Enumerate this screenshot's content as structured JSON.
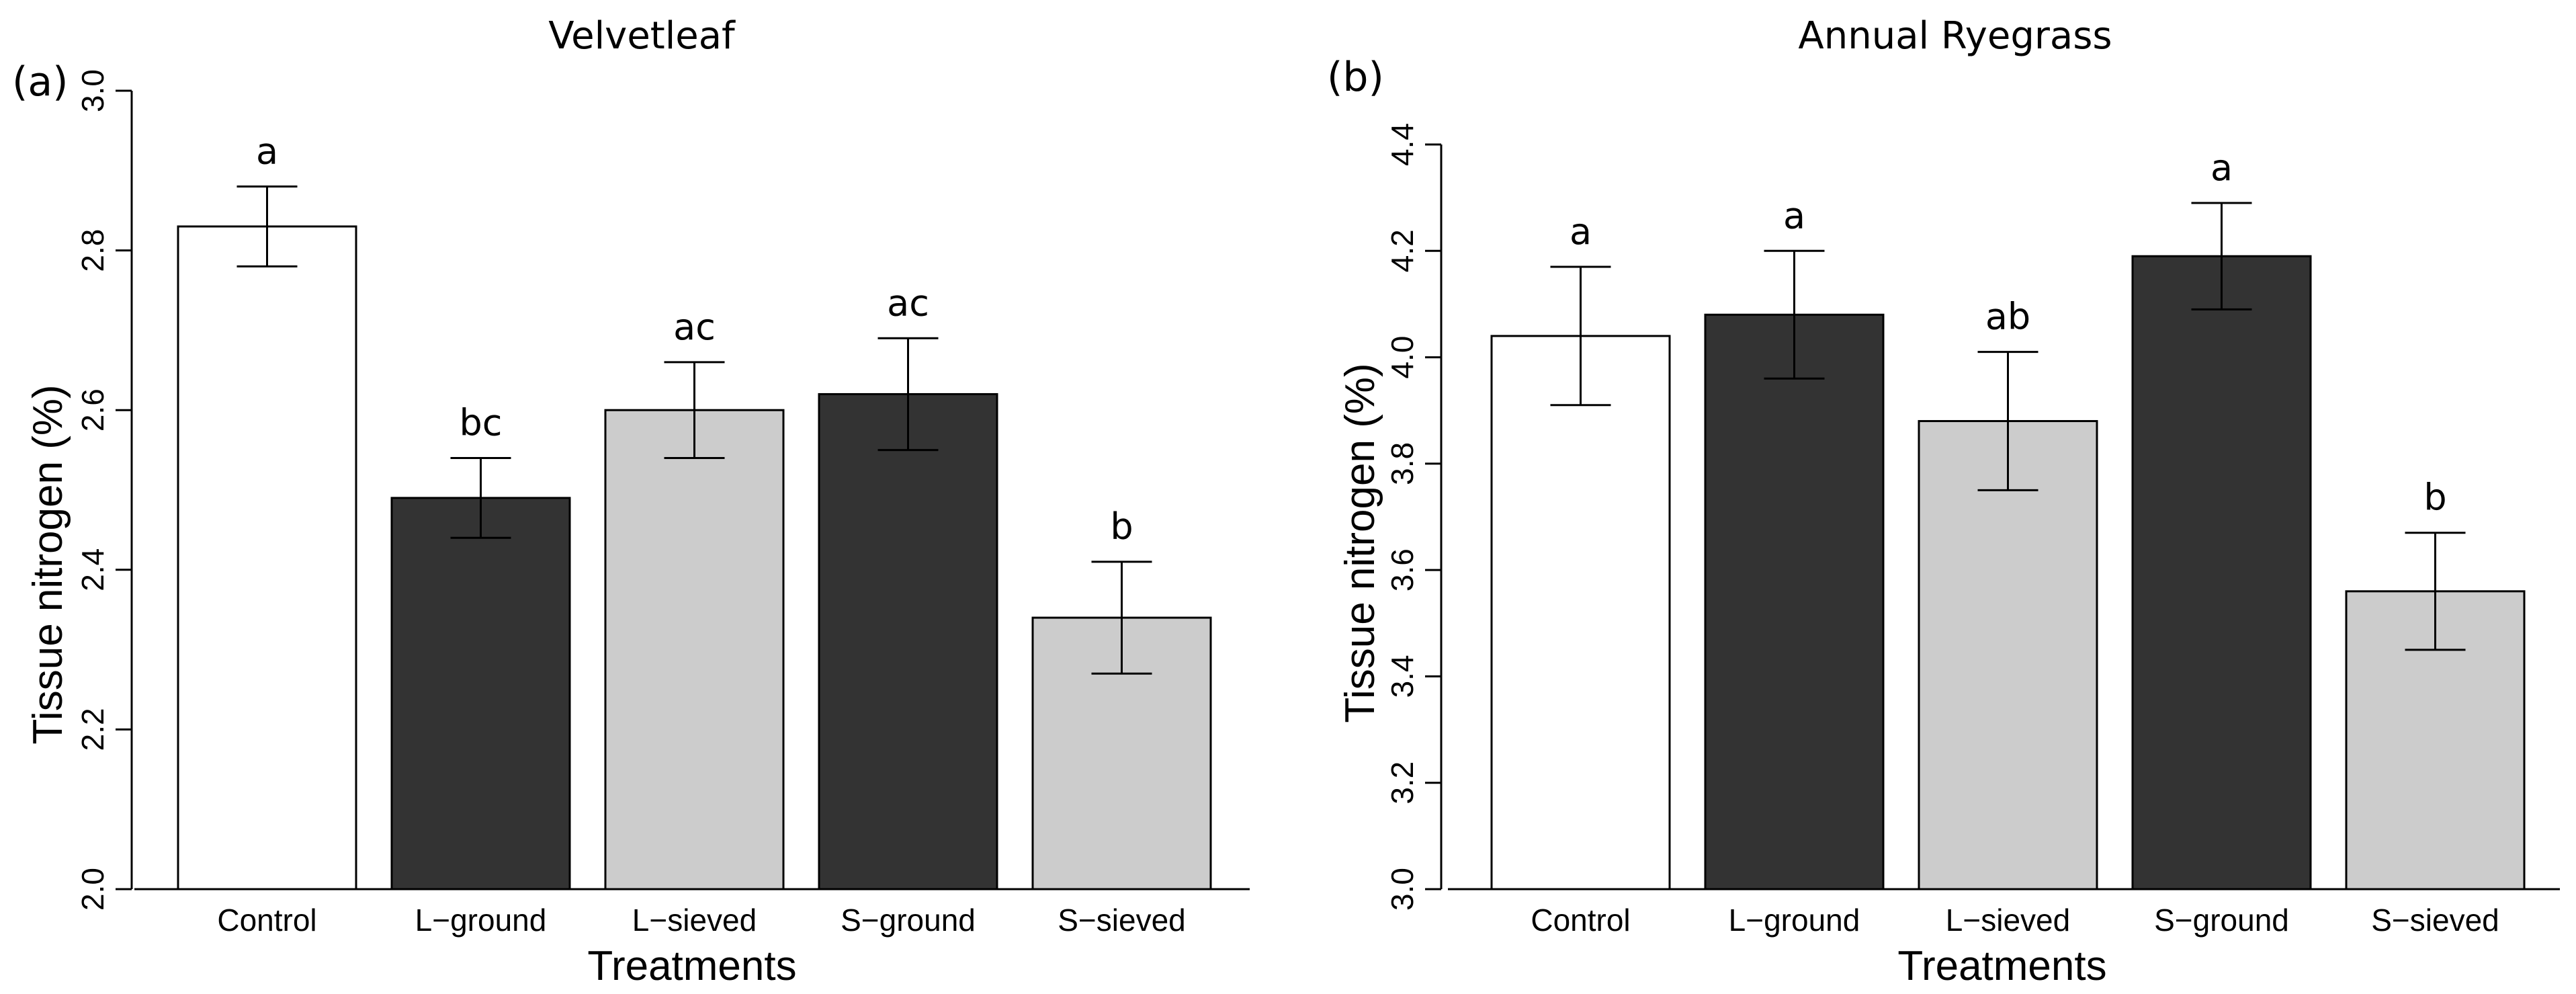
{
  "chart_data": [
    {
      "type": "bar",
      "panel_label": "(a)",
      "title": "Velvetleaf",
      "xlabel": "Treatments",
      "ylabel": "Tissue nitrogen (%)",
      "ylim": [
        2.0,
        3.0
      ],
      "yticks": [
        "2.0",
        "2.2",
        "2.4",
        "2.6",
        "2.8",
        "3.0"
      ],
      "categories": [
        "Control",
        "L−ground",
        "L−sieved",
        "S−ground",
        "S−sieved"
      ],
      "values": [
        2.83,
        2.49,
        2.6,
        2.62,
        2.34
      ],
      "errors": [
        0.05,
        0.05,
        0.06,
        0.07,
        0.07
      ],
      "significance": [
        "a",
        "bc",
        "ac",
        "ac",
        "b"
      ],
      "bar_colors": [
        "#ffffff",
        "#333333",
        "#cccccc",
        "#333333",
        "#cccccc"
      ],
      "grid": false
    },
    {
      "type": "bar",
      "panel_label": "(b)",
      "title": "Annual Ryegrass",
      "xlabel": "Treatments",
      "ylabel": "Tissue nitrogen (%)",
      "ylim": [
        3.0,
        4.4
      ],
      "yticks": [
        "3.0",
        "3.2",
        "3.4",
        "3.6",
        "3.8",
        "4.0",
        "4.2",
        "4.4"
      ],
      "categories": [
        "Control",
        "L−ground",
        "L−sieved",
        "S−ground",
        "S−sieved"
      ],
      "values": [
        4.04,
        4.08,
        3.88,
        4.19,
        3.56
      ],
      "errors": [
        0.13,
        0.12,
        0.13,
        0.1,
        0.11
      ],
      "significance": [
        "a",
        "a",
        "ab",
        "a",
        "b"
      ],
      "bar_colors": [
        "#ffffff",
        "#333333",
        "#cccccc",
        "#333333",
        "#cccccc"
      ],
      "grid": false
    }
  ]
}
